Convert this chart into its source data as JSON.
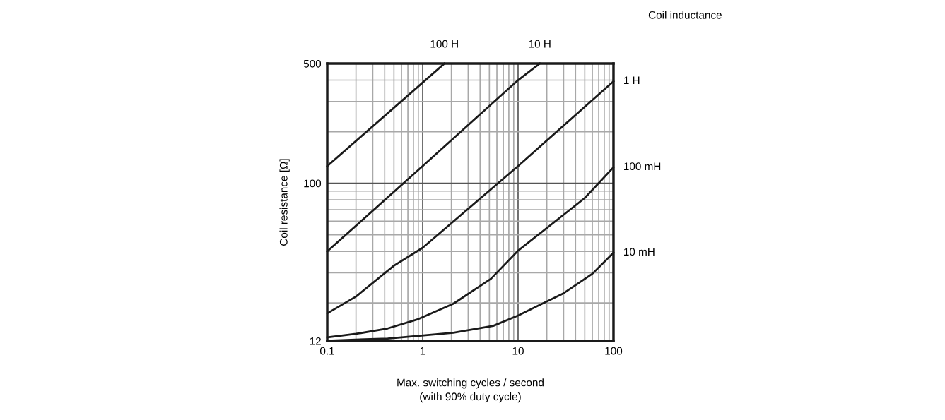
{
  "chart_data": {
    "type": "line",
    "xlabel": "Max. switching cycles / second\n(with 90% duty cycle)",
    "ylabel": "Coil resistance [Ω]",
    "annotations": [
      "Coil inductance"
    ],
    "log": "xy",
    "grid": true,
    "xlim": [
      0.1,
      100
    ],
    "ylim": [
      12,
      500
    ],
    "xticks": [
      0.1,
      1,
      10,
      100
    ],
    "yticks": [
      12,
      100,
      500
    ],
    "series": [
      {
        "name": "100 H",
        "color": "#1a1a1a",
        "x": [
          0.1,
          1.69
        ],
        "values": [
          126,
          500
        ]
      },
      {
        "name": "10 H",
        "color": "#1a1a1a",
        "x": [
          0.1,
          1,
          10,
          16.9
        ],
        "values": [
          40,
          126,
          400,
          500
        ]
      },
      {
        "name": "1 H",
        "color": "#1a1a1a",
        "x": [
          0.1,
          0.2,
          0.5,
          1,
          10,
          100
        ],
        "values": [
          17.4,
          21.8,
          33,
          42,
          126,
          394
        ]
      },
      {
        "name": "100 mH",
        "color": "#1a1a1a",
        "x": [
          0.1,
          0.2,
          0.43,
          0.9,
          2.1,
          5.2,
          10,
          50,
          100
        ],
        "values": [
          12.6,
          13.2,
          14.2,
          16.1,
          19.8,
          27.7,
          40.4,
          82,
          124
        ]
      },
      {
        "name": "10 mH",
        "color": "#1a1a1a",
        "x": [
          0.1,
          0.43,
          2.1,
          5.5,
          10,
          30,
          60,
          100
        ],
        "values": [
          12.05,
          12.4,
          13.4,
          14.7,
          16.9,
          22.8,
          29.6,
          39.3
        ]
      }
    ]
  }
}
